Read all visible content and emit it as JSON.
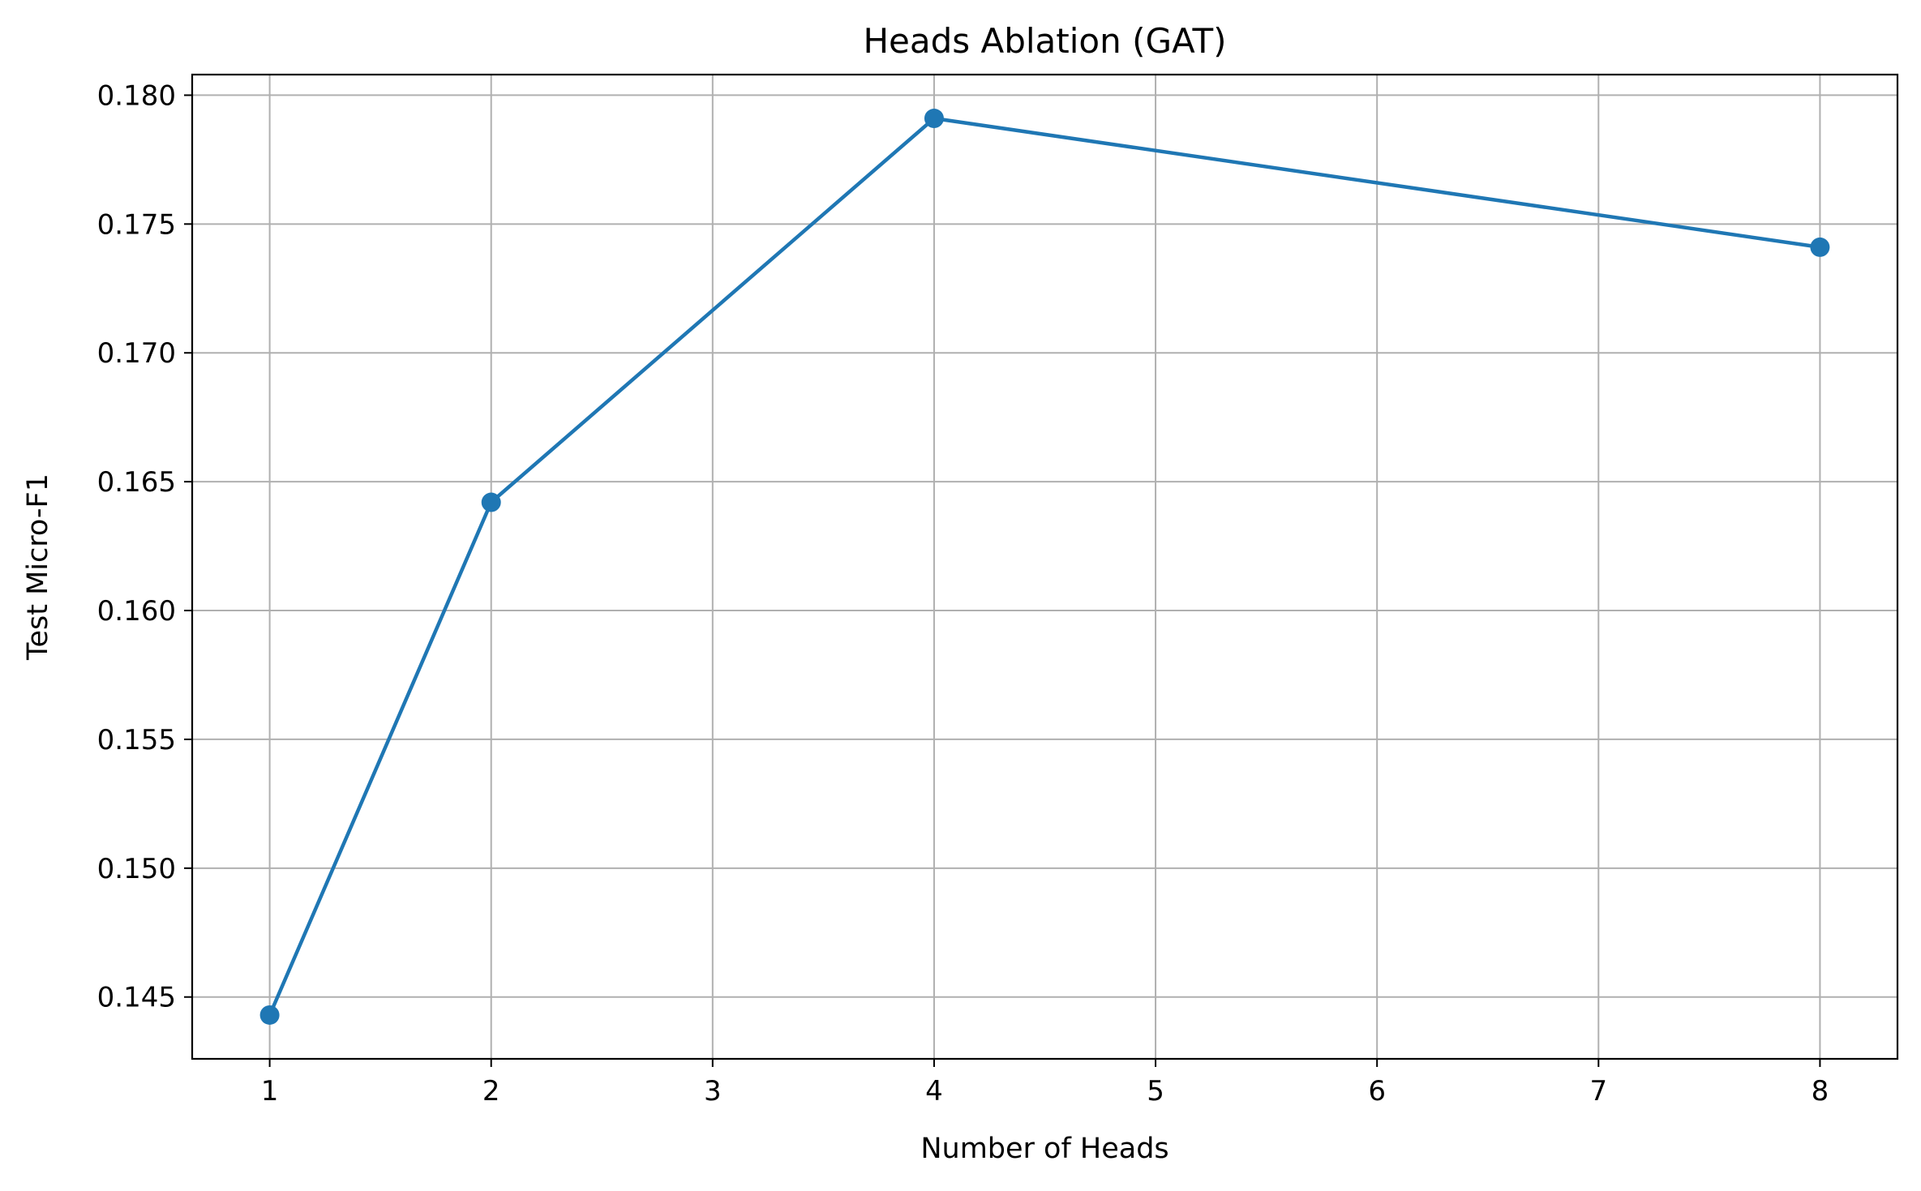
{
  "chart_data": {
    "type": "line",
    "title": "Heads Ablation (GAT)",
    "xlabel": "Number of Heads",
    "ylabel": "Test Micro-F1",
    "xlim": [
      0.65,
      8.35
    ],
    "ylim": [
      0.1426,
      0.1808
    ],
    "x_ticks": [
      "1",
      "2",
      "3",
      "4",
      "5",
      "6",
      "7",
      "8"
    ],
    "y_ticks": [
      "0.145",
      "0.150",
      "0.155",
      "0.160",
      "0.165",
      "0.170",
      "0.175",
      "0.180"
    ],
    "grid": true,
    "series": [
      {
        "color": "#1f77b4",
        "marker": "circle",
        "x": [
          1,
          2,
          4,
          8
        ],
        "y": [
          0.1443,
          0.1642,
          0.1791,
          0.1741
        ]
      }
    ]
  }
}
